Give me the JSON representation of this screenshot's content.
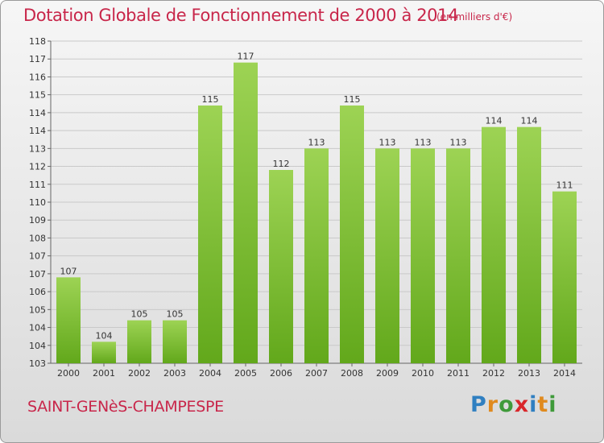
{
  "title": "Dotation Globale de Fonctionnement de 2000 à 2014",
  "subtitle": "(en milliers d'€)",
  "commune": "SAINT-GENèS-CHAMPESPE",
  "logo": {
    "text": "Proxiti",
    "letters": [
      {
        "ch": "P",
        "color": "#2f7fc1"
      },
      {
        "ch": "r",
        "color": "#e08a1e"
      },
      {
        "ch": "o",
        "color": "#3f9a3a"
      },
      {
        "ch": "x",
        "color": "#d9262a"
      },
      {
        "ch": "i",
        "color": "#2f7fc1"
      },
      {
        "ch": "t",
        "color": "#e08a1e"
      },
      {
        "ch": "i",
        "color": "#3f9a3a"
      }
    ]
  },
  "colors": {
    "title": "#c8264a",
    "bar_top": "#9dd354",
    "bar_bottom": "#62a81b",
    "grid": "#c9c9c9",
    "axis_text": "#333333"
  },
  "chart_data": {
    "type": "bar",
    "categories": [
      "2000",
      "2001",
      "2002",
      "2003",
      "2004",
      "2005",
      "2006",
      "2007",
      "2008",
      "2009",
      "2010",
      "2011",
      "2012",
      "2013",
      "2014"
    ],
    "values": [
      107,
      104,
      105,
      105,
      115,
      117,
      112,
      113,
      115,
      113,
      113,
      113,
      114,
      114,
      111
    ],
    "value_labels": [
      "107",
      "104",
      "105",
      "105",
      "115",
      "117",
      "112",
      "113",
      "115",
      "113",
      "113",
      "113",
      "114",
      "114",
      "111"
    ],
    "y_ticks": [
      "103",
      "104",
      "104",
      "105",
      "106",
      "107",
      "107",
      "108",
      "109",
      "110",
      "111",
      "112",
      "113",
      "114",
      "114",
      "115",
      "116",
      "117",
      "118"
    ],
    "ylim": [
      103,
      118
    ],
    "grid": true,
    "title": "Dotation Globale de Fonctionnement de 2000 à 2014",
    "xlabel": "",
    "ylabel": ""
  }
}
